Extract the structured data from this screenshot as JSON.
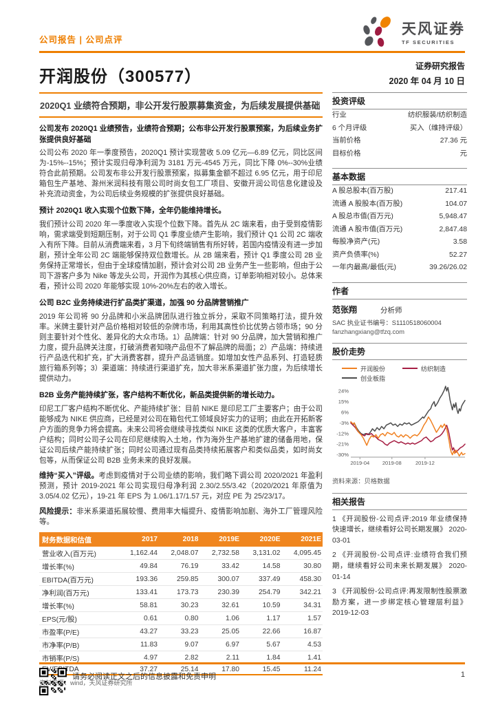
{
  "header": {
    "report_type": "公司报告 | 公司点评",
    "brand_cn": "天风证券",
    "brand_en": "TF SECURITIES",
    "title": "开润股份（300577）",
    "report_label": "证券研究报告",
    "date": "2020 年 04 月 10 日"
  },
  "subtitle": "2020Q1 业绩符合预期，非公开发行股票募集资金，为后续发展提供基础",
  "body": {
    "sections": [
      {
        "heading": "公司发布 2020Q1 业绩预告，业绩符合预期；公布非公开发行股票预案，为后续业务扩张提供良好基础",
        "paragraph": "公司公布 2020 年一季度预告，2020Q1 预计实现营收 5.09 亿元—6.89 亿元，同比区间为-15%--15%；预计实现归母净利润为 3181 万元-4545 万元，同比下降 0%--30%业绩符合此前预期。公司发布非公开发行股票预案，拟募集金额不超过 6.95 亿元，用于印尼箱包生产基地、滁州米润科技有限公司时尚女包工厂项目、安徽开润公司信息化建设及补充流动资金，为公司后续业务规模的扩张提供良好基础。"
      },
      {
        "heading": "预计 2020Q1 收入实现个位数下降，全年仍能维持增长。",
        "paragraph": "我们预计公司 2020 年一季度收入实现个位数下降。首先从 2C 端来看，由于受到疫情影响，需求端受到短期压制，对于公司 Q1 季度业绩产生影响，我们预计 Q1 公司 2C 端收入有所下降。目前从消费端来看，3 月下旬终端销售有所好转，若国内疫情没有进一步加剧，预计全年公司 2C 端能够保持双位数增长。从 2B 端来看，预计 Q1 季度公司 2B 业务保持正常增长，但由于全球疫情加剧，预计会对公司 2B 业务产生一些影响，但由于公司下游客户多为 Nike 等龙头公司，开润作为其核心供应商，订单影响相对较小。总体来看，预计公司 2020 年能够实现 10%-20%左右的收入增长。"
      },
      {
        "heading": "公司 B2C 业务持续进行扩品类扩渠道，加强 90 分品牌营销推广",
        "paragraph": "2019 年公司将 90 分品牌和小米品牌团队进行独立拆分，采取不同策略打法，提升效率。米牌主要针对产品价格相对较低的杂牌市场，利用其高性价比优势占领市场；90 分则主要针对个性化、差异化的大众市场。1）品牌端：针对 90 分品牌，加大营销和推广力度，提升品牌关注度，打破消费者知晓产品但不了解品牌的局面；2）产品端：持续进行产品迭代和扩充，扩大消费客群，提升产品适销度。如增加女性产品系列、打造轻质旅行箱系列等；3）渠道端：持续进行渠道扩充，加大非米系渠道扩张力度，为后续增长提供动力。"
      },
      {
        "heading": "B2B 业务产能持续扩张，客户结构不断优化，新品类提供新的增长动力。",
        "paragraph": "印尼工厂客户结构不断优化、产能持续扩张：目前 NIKE 是印尼工厂主要客户；由于公司能够成为 NIKE 供应商，已经是对公司在箱包代工领域良好实力的证明；由此在开拓新客户方面的竞争力将会提高。未来公司将会继续寻找类似 NIKE 这类的优质大客户，丰富客户结构；同时公司子公司在印尼继续购入土地，作为海外生产基地扩建的储备用地，保证公司后续产能持续扩张；同时公司通过现有品类持续拓展客户和类似品类，如时尚女包等，从而保证公司 B2B 业务未来的良好发展。"
      }
    ],
    "rating": {
      "lead": "维持“买入”评级。",
      "text": "考虑到疫情对于公司业绩的影响，我们略下调公司 2020/2021 年盈利预测，预计 2019-2021 年公司实现归母净利润 2.30/2.55/3.42（2020/2021 年原值为 3.05/4.02 亿元），19-21 年 EPS 为 1.06/1.17/1.57 元，对应 PE 为 25/23/17。"
    },
    "risk": {
      "lead": "风险提示：",
      "text": "非米系渠道拓展较慢、费用率大幅提升、疫情影响加剧、海外工厂管理风险等。"
    }
  },
  "financial_table": {
    "columns": [
      "财务数据和估值",
      "2017",
      "2018",
      "2019E",
      "2020E",
      "2021E"
    ],
    "rows": [
      {
        "label": "营业收入(百万元)",
        "values": [
          "1,162.44",
          "2,048.07",
          "2,732.58",
          "3,131.02",
          "4,095.45"
        ]
      },
      {
        "label": "增长率(%)",
        "values": [
          "49.84",
          "76.19",
          "33.42",
          "14.58",
          "30.80"
        ]
      },
      {
        "label": "EBITDA(百万元)",
        "values": [
          "193.36",
          "259.85",
          "300.07",
          "337.49",
          "458.30"
        ]
      },
      {
        "label": "净利润(百万元)",
        "values": [
          "133.41",
          "173.73",
          "230.39",
          "254.79",
          "342.21"
        ]
      },
      {
        "label": "增长率(%)",
        "values": [
          "58.81",
          "30.23",
          "32.61",
          "10.59",
          "34.31"
        ]
      },
      {
        "label": "EPS(元/股)",
        "values": [
          "0.61",
          "0.80",
          "1.06",
          "1.17",
          "1.57"
        ]
      },
      {
        "label": "市盈率(P/E)",
        "values": [
          "43.27",
          "33.23",
          "25.05",
          "22.66",
          "16.87"
        ]
      },
      {
        "label": "市净率(P/B)",
        "values": [
          "11.83",
          "9.07",
          "6.97",
          "5.67",
          "4.53"
        ]
      },
      {
        "label": "市销率(P/S)",
        "values": [
          "4.97",
          "2.82",
          "2.11",
          "1.84",
          "1.41"
        ]
      },
      {
        "label": "EV/EBITDA",
        "values": [
          "37.27",
          "25.14",
          "17.80",
          "15.45",
          "11.24"
        ]
      }
    ],
    "source": "资料来源：wind，天风证券研究所"
  },
  "sidebar": {
    "rating": {
      "title": "投资评级",
      "rows": [
        {
          "label": "行业",
          "value": "纺织服装/纺织制造"
        },
        {
          "label": "6 个月评级",
          "value": "买入（维持评级）"
        },
        {
          "label": "当前价格",
          "value": "27.36 元"
        },
        {
          "label": "目标价格",
          "value": "元"
        }
      ]
    },
    "basic": {
      "title": "基本数据",
      "rows": [
        {
          "label": "A 股总股本(百万股)",
          "value": "217.41"
        },
        {
          "label": "流通 A 股股本(百万股)",
          "value": "104.07"
        },
        {
          "label": "A 股总市值(百万元)",
          "value": "5,948.47"
        },
        {
          "label": "流通 A 股市值(百万元)",
          "value": "2,847.48"
        },
        {
          "label": "每股净资产(元)",
          "value": "3.58"
        },
        {
          "label": "资产负债率(%)",
          "value": "52.27"
        },
        {
          "label": "一年内最高/最低(元)",
          "value": "39.26/26.02"
        }
      ]
    },
    "author": {
      "title": "作者",
      "name": "范张翔",
      "role": "分析师",
      "cert": "SAC 执业证书编号：S1110518060004",
      "email": "fanzhangxiang@tfzq.com"
    },
    "chart_title": "股价走势",
    "reports": {
      "title": "相关报告",
      "items": [
        "1 《开润股份-公司点评:2019 年业绩保持快速增长，继续看好公司长期发展》 2020-03-01",
        "2 《开润股份-公司点评:业绩符合我们预期，继续看好公司未来长期发展》 2020-01-14",
        "3 《开润股份-公司点评:再发限制性股票激励方案，进一步绑定核心管理层利益》 2019-12-03"
      ]
    }
  },
  "chart_data": {
    "type": "line",
    "title": "股价走势",
    "unit": "%",
    "ylim": [
      -32,
      28
    ],
    "yticks": [
      24,
      15,
      6,
      -3,
      -12,
      -21,
      -30
    ],
    "xticks": [
      {
        "pos": 8,
        "label": "2019-04"
      },
      {
        "pos": 36,
        "label": "2019-08"
      },
      {
        "pos": 65,
        "label": "2019-12"
      }
    ],
    "legend_position": "top",
    "grid": false,
    "source": "资料来源：贝格数据",
    "series": [
      {
        "name": "开润股份",
        "color": "#F08122",
        "points": [
          [
            0,
            -2
          ],
          [
            2,
            -4
          ],
          [
            3,
            -3
          ],
          [
            5,
            -8
          ],
          [
            7,
            -11
          ],
          [
            9,
            -13
          ],
          [
            11,
            -16
          ],
          [
            13,
            -20
          ],
          [
            14,
            -22
          ],
          [
            16,
            -17
          ],
          [
            18,
            -14
          ],
          [
            20,
            -15
          ],
          [
            22,
            -13
          ],
          [
            24,
            -16
          ],
          [
            26,
            -13
          ],
          [
            28,
            -12
          ],
          [
            30,
            -14
          ],
          [
            32,
            -11
          ],
          [
            34,
            -12
          ],
          [
            36,
            -13
          ],
          [
            38,
            -11
          ],
          [
            40,
            -14
          ],
          [
            42,
            -15
          ],
          [
            44,
            -13
          ],
          [
            46,
            -15
          ],
          [
            48,
            -13
          ],
          [
            50,
            -14
          ],
          [
            52,
            -16
          ],
          [
            54,
            -14
          ],
          [
            56,
            -13
          ],
          [
            58,
            -14
          ],
          [
            60,
            -12
          ],
          [
            62,
            -9
          ],
          [
            64,
            -5
          ],
          [
            66,
            -2
          ],
          [
            68,
            2
          ],
          [
            70,
            -1
          ],
          [
            72,
            -5
          ],
          [
            74,
            -9
          ],
          [
            75,
            -11
          ],
          [
            77,
            -8
          ],
          [
            79,
            -5
          ],
          [
            80,
            -7
          ],
          [
            82,
            -4
          ],
          [
            84,
            -8
          ],
          [
            85,
            -13
          ],
          [
            86,
            -18
          ],
          [
            87,
            -24
          ],
          [
            88,
            -28
          ],
          [
            89,
            -30
          ],
          [
            90,
            -27
          ],
          [
            91,
            -29
          ],
          [
            92,
            -26
          ],
          [
            94,
            -29
          ],
          [
            95,
            -31
          ],
          [
            97,
            -28
          ],
          [
            98,
            -30
          ],
          [
            100,
            -29
          ]
        ]
      },
      {
        "name": "纺织制造",
        "color": "#A61E43",
        "points": [
          [
            0,
            -3
          ],
          [
            2,
            -5
          ],
          [
            4,
            -7
          ],
          [
            6,
            -10
          ],
          [
            8,
            -12
          ],
          [
            10,
            -13
          ],
          [
            12,
            -14
          ],
          [
            14,
            -12
          ],
          [
            16,
            -13
          ],
          [
            18,
            -12
          ],
          [
            20,
            -14
          ],
          [
            22,
            -15
          ],
          [
            24,
            -17
          ],
          [
            26,
            -18
          ],
          [
            28,
            -19
          ],
          [
            30,
            -21
          ],
          [
            32,
            -22
          ],
          [
            34,
            -20
          ],
          [
            36,
            -19
          ],
          [
            38,
            -18
          ],
          [
            40,
            -19
          ],
          [
            42,
            -20
          ],
          [
            44,
            -19
          ],
          [
            46,
            -20
          ],
          [
            48,
            -21
          ],
          [
            50,
            -20
          ],
          [
            52,
            -21
          ],
          [
            54,
            -20
          ],
          [
            56,
            -21
          ],
          [
            58,
            -20
          ],
          [
            60,
            -19
          ],
          [
            62,
            -18
          ],
          [
            64,
            -16
          ],
          [
            66,
            -15
          ],
          [
            68,
            -17
          ],
          [
            70,
            -19
          ],
          [
            72,
            -18
          ],
          [
            74,
            -16
          ],
          [
            76,
            -15
          ],
          [
            78,
            -14
          ],
          [
            80,
            -12
          ],
          [
            82,
            -9
          ],
          [
            84,
            -5
          ],
          [
            85,
            -8
          ],
          [
            86,
            -12
          ],
          [
            87,
            -17
          ],
          [
            88,
            -22
          ],
          [
            89,
            -26
          ],
          [
            90,
            -24
          ],
          [
            91,
            -27
          ],
          [
            92,
            -28
          ],
          [
            94,
            -26
          ],
          [
            96,
            -24
          ],
          [
            98,
            -23
          ],
          [
            100,
            -21
          ]
        ]
      },
      {
        "name": "创业板指",
        "color": "#4D4D4D",
        "points": [
          [
            0,
            -3
          ],
          [
            2,
            -5
          ],
          [
            3,
            -3
          ],
          [
            5,
            -7
          ],
          [
            7,
            -10
          ],
          [
            9,
            -12
          ],
          [
            11,
            -13
          ],
          [
            13,
            -12
          ],
          [
            15,
            -13
          ],
          [
            17,
            -11
          ],
          [
            19,
            -8
          ],
          [
            21,
            -10
          ],
          [
            23,
            -7
          ],
          [
            25,
            -9
          ],
          [
            27,
            -6
          ],
          [
            29,
            -8
          ],
          [
            31,
            -5
          ],
          [
            33,
            -4
          ],
          [
            35,
            -3
          ],
          [
            37,
            -5
          ],
          [
            39,
            -4
          ],
          [
            41,
            -6
          ],
          [
            43,
            -4
          ],
          [
            45,
            -5
          ],
          [
            47,
            -3
          ],
          [
            49,
            -4
          ],
          [
            51,
            -3
          ],
          [
            53,
            -5
          ],
          [
            55,
            -4
          ],
          [
            57,
            -3
          ],
          [
            59,
            -2
          ],
          [
            61,
            0
          ],
          [
            63,
            2
          ],
          [
            64,
            1
          ],
          [
            66,
            4
          ],
          [
            68,
            7
          ],
          [
            70,
            9
          ],
          [
            71,
            12
          ],
          [
            73,
            15
          ],
          [
            74,
            11
          ],
          [
            76,
            14
          ],
          [
            78,
            18
          ],
          [
            80,
            21
          ],
          [
            82,
            25
          ],
          [
            83,
            28
          ],
          [
            84,
            24
          ],
          [
            85,
            27
          ],
          [
            86,
            22
          ],
          [
            87,
            16
          ],
          [
            88,
            12
          ],
          [
            89,
            8
          ],
          [
            90,
            13
          ],
          [
            91,
            10
          ],
          [
            92,
            14
          ],
          [
            93,
            8
          ],
          [
            94,
            5
          ],
          [
            95,
            9
          ],
          [
            96,
            7
          ],
          [
            97,
            11
          ],
          [
            98,
            13
          ],
          [
            100,
            16
          ]
        ]
      }
    ]
  },
  "footer": {
    "disclaimer": "请务必阅读正文之后的信息披露和免责申明",
    "page": "1"
  }
}
